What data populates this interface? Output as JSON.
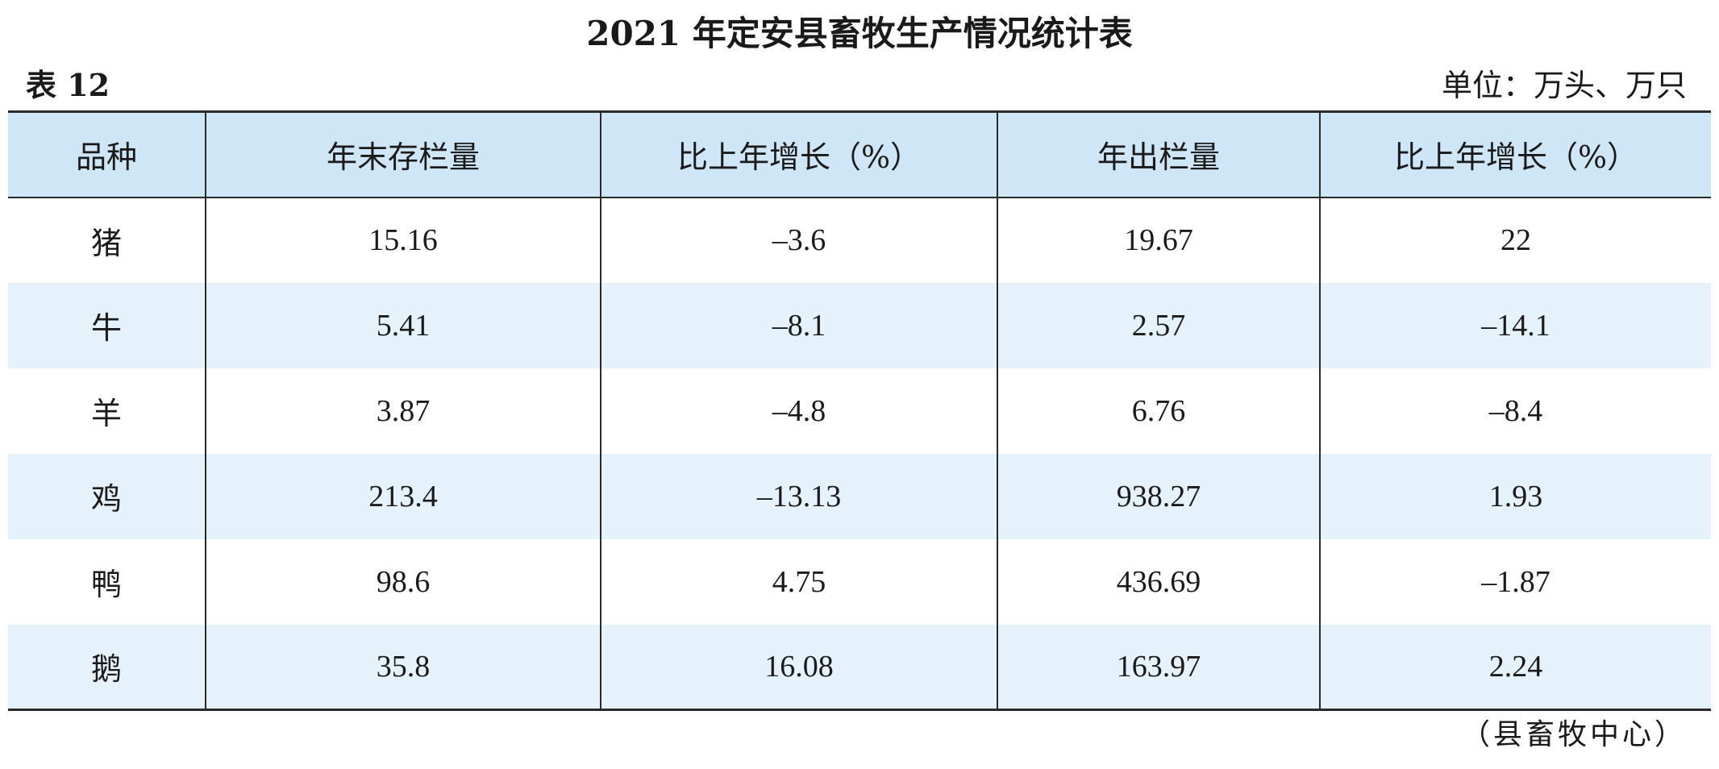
{
  "title": "2021 年定安县畜牧生产情况统计表",
  "table_no": "表 12",
  "unit": "单位：万头、万只",
  "headers": [
    "品种",
    "年末存栏量",
    "比上年增长（%）",
    "年出栏量",
    "比上年增长（%）"
  ],
  "rows": [
    {
      "species": "猪",
      "stock": "15.16",
      "stock_growth": "–3.6",
      "output": "19.67",
      "output_growth": "22"
    },
    {
      "species": "牛",
      "stock": "5.41",
      "stock_growth": "–8.1",
      "output": "2.57",
      "output_growth": "–14.1"
    },
    {
      "species": "羊",
      "stock": "3.87",
      "stock_growth": "–4.8",
      "output": "6.76",
      "output_growth": "–8.4"
    },
    {
      "species": "鸡",
      "stock": "213.4",
      "stock_growth": "–13.13",
      "output": "938.27",
      "output_growth": "1.93"
    },
    {
      "species": "鸭",
      "stock": "98.6",
      "stock_growth": "4.75",
      "output": "436.69",
      "output_growth": "–1.87"
    },
    {
      "species": "鹅",
      "stock": "35.8",
      "stock_growth": "16.08",
      "output": "163.97",
      "output_growth": "2.24"
    }
  ],
  "source": "（县畜牧中心）",
  "colors": {
    "header_bg": "#cfe6f6",
    "stripe_bg": "#e6f2fb",
    "rule": "#2a2a2a"
  }
}
